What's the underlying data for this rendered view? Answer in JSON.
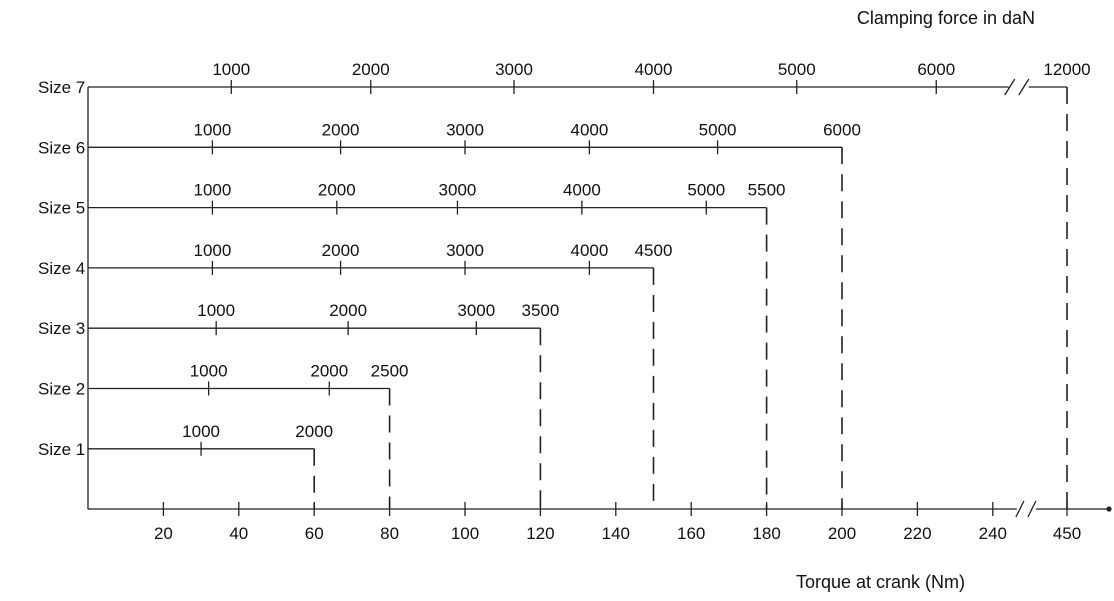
{
  "chart_data": {
    "type": "line",
    "title": "",
    "top_axis_title": "Clamping force in daN",
    "xlabel": "Torque at crank (Nm)",
    "ylabel": "",
    "x_axis": {
      "ticks": [
        20,
        40,
        60,
        80,
        100,
        120,
        140,
        160,
        180,
        200,
        220,
        240,
        450
      ],
      "break_between": [
        240,
        450
      ]
    },
    "series": [
      {
        "name": "Size 1",
        "max_torque": 60,
        "points": [
          {
            "force": 1000,
            "torque": 30
          },
          {
            "force": 2000,
            "torque": 60
          }
        ]
      },
      {
        "name": "Size 2",
        "max_torque": 80,
        "points": [
          {
            "force": 1000,
            "torque": 32
          },
          {
            "force": 2000,
            "torque": 64
          },
          {
            "force": 2500,
            "torque": 80
          }
        ]
      },
      {
        "name": "Size 3",
        "max_torque": 120,
        "points": [
          {
            "force": 1000,
            "torque": 34
          },
          {
            "force": 2000,
            "torque": 69
          },
          {
            "force": 3000,
            "torque": 103
          },
          {
            "force": 3500,
            "torque": 120
          }
        ]
      },
      {
        "name": "Size 4",
        "max_torque": 150,
        "points": [
          {
            "force": 1000,
            "torque": 33
          },
          {
            "force": 2000,
            "torque": 67
          },
          {
            "force": 3000,
            "torque": 100
          },
          {
            "force": 4000,
            "torque": 133
          },
          {
            "force": 4500,
            "torque": 150
          }
        ]
      },
      {
        "name": "Size 5",
        "max_torque": 180,
        "points": [
          {
            "force": 1000,
            "torque": 33
          },
          {
            "force": 2000,
            "torque": 66
          },
          {
            "force": 3000,
            "torque": 98
          },
          {
            "force": 4000,
            "torque": 131
          },
          {
            "force": 5000,
            "torque": 164
          },
          {
            "force": 5500,
            "torque": 180
          }
        ]
      },
      {
        "name": "Size 6",
        "max_torque": 200,
        "points": [
          {
            "force": 1000,
            "torque": 33
          },
          {
            "force": 2000,
            "torque": 67
          },
          {
            "force": 3000,
            "torque": 100
          },
          {
            "force": 4000,
            "torque": 133
          },
          {
            "force": 5000,
            "torque": 167
          },
          {
            "force": 6000,
            "torque": 200
          }
        ]
      },
      {
        "name": "Size 7",
        "max_torque": 450,
        "points": [
          {
            "force": 1000,
            "torque": 38
          },
          {
            "force": 2000,
            "torque": 75
          },
          {
            "force": 3000,
            "torque": 113
          },
          {
            "force": 4000,
            "torque": 150
          },
          {
            "force": 5000,
            "torque": 188
          },
          {
            "force": 6000,
            "torque": 225
          },
          {
            "force": 12000,
            "torque": 450
          }
        ]
      }
    ],
    "grid": false,
    "legend": "none"
  }
}
